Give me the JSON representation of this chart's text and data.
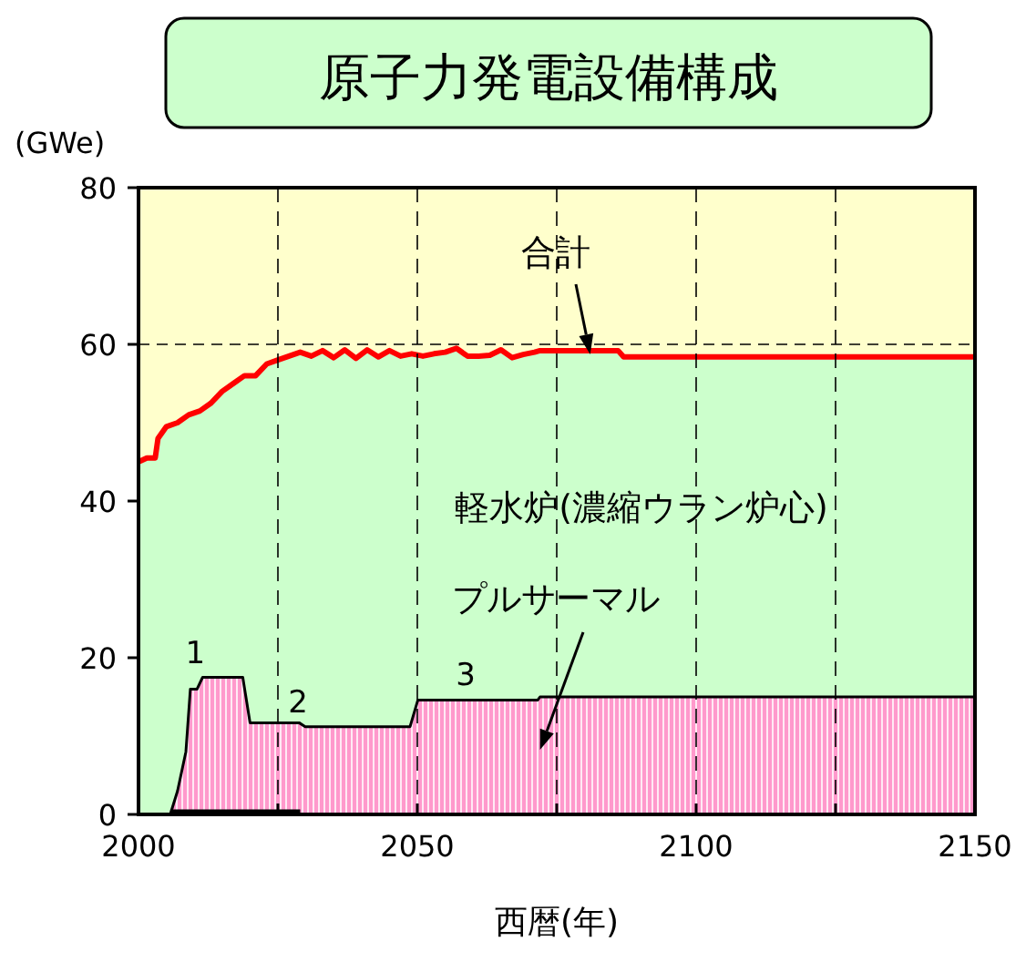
{
  "chart_data": {
    "type": "area",
    "title": "原子力発電設備構成",
    "xlabel": "西暦(年)",
    "ylabel": "(GWe)",
    "xlim": [
      2000,
      2150
    ],
    "ylim": [
      0,
      80
    ],
    "xticks": [
      2000,
      {
        "value": 2025,
        "label": null
      },
      2050,
      {
        "value": 2075,
        "label": null
      },
      2100,
      {
        "value": 2125,
        "label": null
      },
      2150
    ],
    "yticks": [
      0,
      20,
      40,
      60,
      80
    ],
    "grid": "x",
    "bands": [
      {
        "axis": "y",
        "from": 45,
        "to": 80,
        "color": "#ffffcc"
      }
    ],
    "ref_lines": [
      {
        "axis": "y",
        "value": 60,
        "line_style": "dashed",
        "color": "#000000"
      }
    ],
    "series": [
      {
        "name": "軽水炉(濃縮ウラン炉心)",
        "color": "#ccffcc",
        "x": [
          2000,
          2001.5,
          2003,
          2003.5,
          2005,
          2007,
          2009,
          2011,
          2013,
          2015,
          2017,
          2019,
          2021,
          2023,
          2025,
          2027,
          2029,
          2031,
          2033,
          2035,
          2037,
          2039,
          2041,
          2043,
          2045,
          2047,
          2049,
          2051,
          2053,
          2055,
          2057,
          2059,
          2061,
          2063,
          2065,
          2067,
          2069,
          2071,
          2072,
          2086,
          2087,
          2150
        ],
        "values": [
          45,
          45.5,
          45.5,
          48,
          49.5,
          50,
          51,
          51.5,
          52.5,
          54,
          55,
          56,
          56,
          57.5,
          58,
          58.5,
          59,
          58.5,
          59.2,
          58.3,
          59.3,
          58.2,
          59.3,
          58.4,
          59.2,
          58.5,
          58.8,
          58.5,
          58.8,
          59,
          59.5,
          58.5,
          58.5,
          58.6,
          59.3,
          58.3,
          58.7,
          59,
          59.2,
          59.2,
          58.4,
          58.4
        ]
      },
      {
        "name": "合計",
        "type": "line",
        "color": "#ff0000",
        "x": [
          2000,
          2001.5,
          2003,
          2003.5,
          2005,
          2007,
          2009,
          2011,
          2013,
          2015,
          2017,
          2019,
          2021,
          2023,
          2025,
          2027,
          2029,
          2031,
          2033,
          2035,
          2037,
          2039,
          2041,
          2043,
          2045,
          2047,
          2049,
          2051,
          2053,
          2055,
          2057,
          2059,
          2061,
          2063,
          2065,
          2067,
          2069,
          2071,
          2072,
          2086,
          2087,
          2150
        ],
        "values": [
          45,
          45.5,
          45.5,
          48,
          49.5,
          50,
          51,
          51.5,
          52.5,
          54,
          55,
          56,
          56,
          57.5,
          58,
          58.5,
          59,
          58.5,
          59.2,
          58.3,
          59.3,
          58.2,
          59.3,
          58.4,
          59.2,
          58.5,
          58.8,
          58.5,
          58.8,
          59,
          59.5,
          58.5,
          58.5,
          58.6,
          59.3,
          58.3,
          58.7,
          59,
          59.2,
          59.2,
          58.4,
          58.4
        ]
      },
      {
        "name": "プルサーマル",
        "color": "#ff99cc",
        "x": [
          2005.7,
          2007,
          2008.5,
          2009.3,
          2010.5,
          2011.5,
          2018.7,
          2020,
          2028.8,
          2029.9,
          2048.7,
          2050.1,
          2071.6,
          2072,
          2150
        ],
        "values": [
          0,
          3,
          8,
          16,
          16,
          17.5,
          17.5,
          11.7,
          11.7,
          11.2,
          11.2,
          14.6,
          14.6,
          15,
          15
        ]
      },
      {
        "type": "line",
        "color": "#000000",
        "x": [
          2005.7,
          2029
        ],
        "values": [
          0.4,
          0.4
        ]
      }
    ],
    "annotations": [
      {
        "text": "1",
        "x": 2011.5,
        "y": 17.5
      },
      {
        "text": "2",
        "x": 2029.9,
        "y": 11.2
      },
      {
        "text": "3",
        "x": 2060,
        "y": 14.6
      }
    ]
  }
}
